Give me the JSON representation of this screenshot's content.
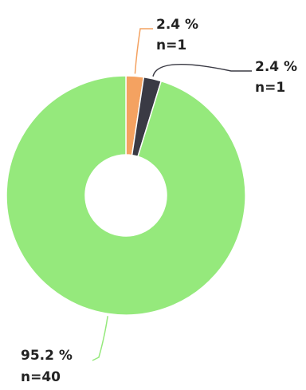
{
  "chart_data": {
    "type": "pie",
    "style": "donut",
    "legend": "none",
    "slices": [
      {
        "value": 1,
        "percent_label": "2.4 %",
        "count_label": "n=1",
        "color": "#f4a261"
      },
      {
        "value": 1,
        "percent_label": "2.4 %",
        "count_label": "n=1",
        "color": "#3a3a44"
      },
      {
        "value": 40,
        "percent_label": "95.2 %",
        "count_label": "n=40",
        "color": "#95e97c"
      }
    ]
  }
}
